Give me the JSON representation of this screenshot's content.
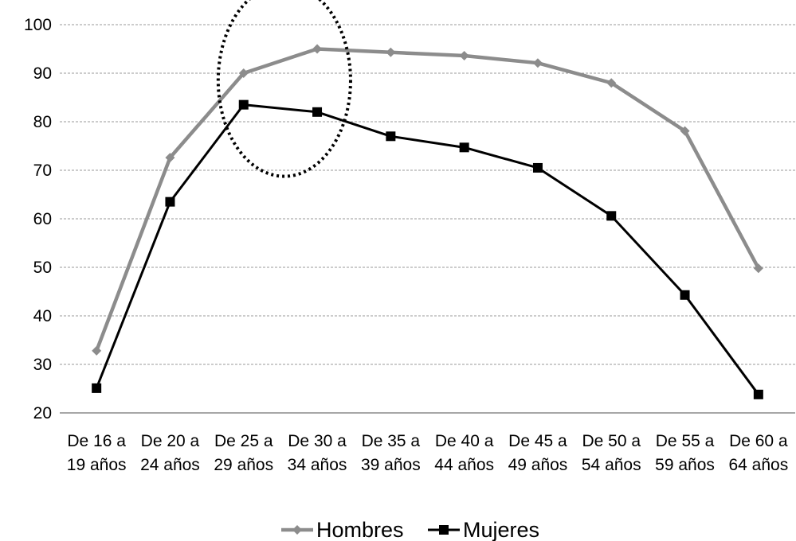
{
  "chart_data": {
    "type": "line",
    "categories": [
      [
        "De 16 a",
        "19 años"
      ],
      [
        "De 20 a",
        "24 años"
      ],
      [
        "De 25 a",
        "29 años"
      ],
      [
        "De 30 a",
        "34 años"
      ],
      [
        "De 35 a",
        "39 años"
      ],
      [
        "De 40 a",
        "44 años"
      ],
      [
        "De 45 a",
        "49 años"
      ],
      [
        "De 50 a",
        "54 años"
      ],
      [
        "De 55 a",
        "59 años"
      ],
      [
        "De 60 a",
        "64 años"
      ]
    ],
    "series": [
      {
        "name": "Hombres",
        "marker": "diamond",
        "color": "#8c8c8c",
        "values": [
          32.8,
          72.6,
          90.0,
          95.0,
          94.3,
          93.6,
          92.1,
          88.0,
          78.1,
          49.8
        ]
      },
      {
        "name": "Mujeres",
        "marker": "square",
        "color": "#000000",
        "values": [
          25.1,
          63.5,
          83.5,
          82.0,
          77.0,
          74.7,
          70.5,
          60.6,
          44.3,
          23.8
        ]
      }
    ],
    "ylim": [
      20,
      100
    ],
    "yticks": [
      20,
      30,
      40,
      50,
      60,
      70,
      80,
      90,
      100
    ],
    "grid": "horizontal dashed",
    "legend": "bottom",
    "annotation": "dotted ellipse around 25 a 29 años and 30 a 34 años",
    "title": "",
    "xlabel": "",
    "ylabel": ""
  }
}
